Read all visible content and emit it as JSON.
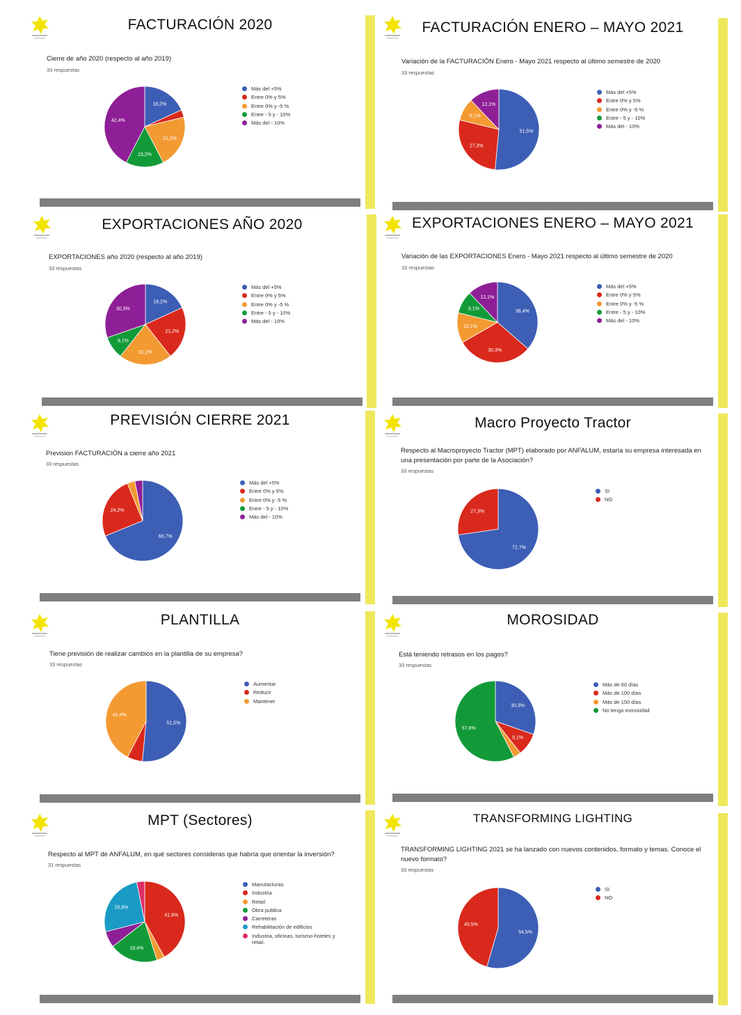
{
  "colors": {
    "blue": "#3c5eb4",
    "red": "#d9291c",
    "orange": "#f39a33",
    "green": "#129a38",
    "purple": "#8f1f96",
    "teal": "#1a9bc5",
    "pink": "#de2e69"
  },
  "panels": [
    {
      "title": "FACTURACIÓN 2020",
      "question": "Cierre de año 2020 (respecto al año 2019)",
      "responses": "33 respuestas",
      "chart_data": {
        "type": "pie",
        "categories": [
          "Más del +5%",
          "Entre 0% y 5%",
          "Entre 0% y -5 %",
          "Entre - 5 y - 10%",
          "Más del - 10%"
        ],
        "values": [
          18.2,
          3.0,
          21.2,
          15.2,
          42.4
        ],
        "labels": [
          "18,2%",
          "",
          "21,2%",
          "15,2%",
          "42,4%"
        ],
        "colors": [
          "blue",
          "red",
          "orange",
          "green",
          "purple"
        ]
      }
    },
    {
      "title": "FACTURACIÓN ENERO – MAYO 2021",
      "question": "Variación de la FACTURACIÓN Enero - Mayo 2021 respecto al último semestre de 2020",
      "responses": "33 respuestas",
      "chart_data": {
        "type": "pie",
        "categories": [
          "Más del +5%",
          "Entre 0% y 5%",
          "Entre 0% y -5 %",
          "Entre - 5 y - 10%",
          "Más del - 10%"
        ],
        "values": [
          51.5,
          27.3,
          9.1,
          0,
          12.1
        ],
        "labels": [
          "51,5%",
          "27,3%",
          "9,1%",
          "",
          "12,1%"
        ],
        "colors": [
          "blue",
          "red",
          "orange",
          "green",
          "purple"
        ]
      }
    },
    {
      "title": "EXPORTACIONES AÑO 2020",
      "question": "EXPORTACIONES año 2020 (respecto al año 2019)",
      "responses": "33 respuestas",
      "chart_data": {
        "type": "pie",
        "categories": [
          "Más del +5%",
          "Entre 0% y 5%",
          "Entre 0% y -5 %",
          "Entre - 5 y - 10%",
          "Más del - 10%"
        ],
        "values": [
          18.2,
          21.2,
          21.2,
          9.1,
          30.3
        ],
        "labels": [
          "18,2%",
          "21,2%",
          "21,2%",
          "9,1%",
          "30,3%"
        ],
        "colors": [
          "blue",
          "red",
          "orange",
          "green",
          "purple"
        ]
      }
    },
    {
      "title": "EXPORTACIONES ENERO – MAYO 2021",
      "question": "Variación de las EXPORTACIONES Enero - Mayo 2021 respecto al último semestre de 2020",
      "responses": "33 respuestas",
      "chart_data": {
        "type": "pie",
        "categories": [
          "Más del +5%",
          "Entre 0% y 5%",
          "Entre 0% y -5 %",
          "Entre - 5 y - 10%",
          "Más del - 10%"
        ],
        "values": [
          36.4,
          30.3,
          12.1,
          9.1,
          12.1
        ],
        "labels": [
          "36,4%",
          "30,3%",
          "12,1%",
          "9,1%",
          "12,1%"
        ],
        "colors": [
          "blue",
          "red",
          "orange",
          "green",
          "purple"
        ]
      }
    },
    {
      "title": "PREVISIÓN CIERRE 2021",
      "question": "Prevision FACTURACIÓN a cierre año 2021",
      "responses": "33 respuestas",
      "chart_data": {
        "type": "pie",
        "categories": [
          "Más del +5%",
          "Entre 0% y 5%",
          "Entre 0% y -5 %",
          "Entre - 5 y - 10%",
          "Más del - 10%"
        ],
        "values": [
          66.7,
          24.2,
          3.0,
          0,
          3.0
        ],
        "labels": [
          "66,7%",
          "24,2%",
          "",
          "",
          ""
        ],
        "colors": [
          "blue",
          "red",
          "orange",
          "green",
          "purple"
        ]
      }
    },
    {
      "title": "Macro Proyecto Tractor",
      "question": "Respecto al Macroproyecto Tractor (MPT) elaborado por ANFALUM, estaría su empresa interesada en una presentación por parte de la Asociación?",
      "responses": "33 respuestas",
      "chart_data": {
        "type": "pie",
        "categories": [
          "SI",
          "NO"
        ],
        "values": [
          72.7,
          27.3
        ],
        "labels": [
          "72,7%",
          "27,3%"
        ],
        "colors": [
          "blue",
          "red"
        ]
      }
    },
    {
      "title": "PLANTILLA",
      "question": "Tiene previsión de realizar cambios en la plantilla de su empresa?",
      "responses": "33 respuestas",
      "chart_data": {
        "type": "pie",
        "categories": [
          "Aumentar",
          "Reducir",
          "Mantener"
        ],
        "values": [
          51.5,
          6.1,
          42.4
        ],
        "labels": [
          "51,5%",
          "",
          "42,4%"
        ],
        "colors": [
          "blue",
          "red",
          "orange"
        ]
      }
    },
    {
      "title": "MOROSIDAD",
      "question": "Está teniendo retrasos en los pagos?",
      "responses": "33 respuestas",
      "chart_data": {
        "type": "pie",
        "categories": [
          "Más de 60 días",
          "Más de 100 días",
          "Más de 150 días",
          "No tengo morosidad"
        ],
        "values": [
          30.3,
          9.1,
          3.0,
          57.6
        ],
        "labels": [
          "30,3%",
          "9,1%",
          "",
          "57,6%"
        ],
        "colors": [
          "blue",
          "red",
          "orange",
          "green"
        ]
      }
    },
    {
      "title": "MPT (Sectores)",
      "question": "Respecto al MPT de ANFALUM, en qué sectores consideras que habría que orientar la inversión?",
      "responses": "31 respuestas",
      "chart_data": {
        "type": "pie",
        "categories": [
          "Manufacturas",
          "Industria",
          "Retail",
          "Obra publica",
          "Carreteras",
          "Rehabilitación de edificios",
          "Industria, oficinas, turismo-hoteles y retail."
        ],
        "values": [
          0,
          41.9,
          3.2,
          19.4,
          6.5,
          25.8,
          3.2
        ],
        "labels": [
          "",
          "41,9%",
          "",
          "19,4%",
          "",
          "25,8%",
          ""
        ],
        "colors": [
          "blue",
          "red",
          "orange",
          "green",
          "purple",
          "teal",
          "pink"
        ]
      }
    },
    {
      "title": "TRANSFORMING LIGHTING",
      "question": "TRANSFORMING LIGHTING 2021 se ha lanzado con nuevos contenidos, formato y temas. Conoce el nuevo formato?",
      "responses": "33 respuestas",
      "chart_data": {
        "type": "pie",
        "categories": [
          "SI",
          "NO"
        ],
        "values": [
          54.5,
          45.5
        ],
        "labels": [
          "54,5%",
          "45,5%"
        ],
        "colors": [
          "blue",
          "red"
        ]
      }
    }
  ]
}
